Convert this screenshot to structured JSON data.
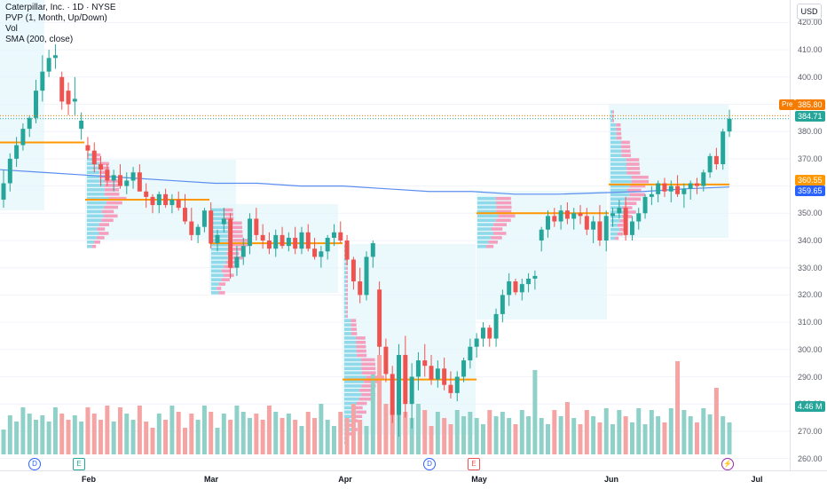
{
  "legend": {
    "symbol": "Caterpillar, Inc. · 1D · NYSE",
    "pvp": "PVP (1, Month, Up/Down)",
    "vol": "Vol",
    "sma": "SMA (200, close)"
  },
  "currency": "USD",
  "price_axis": {
    "ticks": [
      "420.00",
      "410.00",
      "400.00",
      "390.00",
      "380.00",
      "370.00",
      "360.00",
      "350.00",
      "340.00",
      "330.00",
      "320.00",
      "310.00",
      "300.00",
      "290.00",
      "280.00",
      "270.00",
      "260.00"
    ],
    "pre_label": "Pre",
    "pre_price": "385.80",
    "last_price": "384.71",
    "poc_price": "360.55",
    "sma_price": "359.65",
    "volume_label": "4.46 M"
  },
  "time_axis": {
    "labels": [
      "Feb",
      "Mar",
      "Apr",
      "May",
      "Jun",
      "Jul"
    ]
  },
  "events": {
    "div1": "D",
    "earn1": "E",
    "div2": "D",
    "earn2": "E",
    "flash": "⚡"
  },
  "colors": {
    "up": "#26a69a",
    "down": "#ef5350",
    "sma": "#5b8def",
    "poc": "#ff9800",
    "vol_up": "#8fd1c9",
    "vol_down": "#f5a3a3",
    "profile_bg": "#e3f6fb"
  },
  "chart_data": {
    "type": "candlestick",
    "y_range": [
      255,
      425
    ],
    "candles": [
      [
        355,
        366,
        352,
        361
      ],
      [
        361,
        372,
        358,
        370
      ],
      [
        370,
        378,
        367,
        375
      ],
      [
        375,
        383,
        373,
        381
      ],
      [
        381,
        386,
        378,
        385
      ],
      [
        385,
        399,
        383,
        395
      ],
      [
        395,
        408,
        391,
        402
      ],
      [
        402,
        410,
        400,
        407
      ],
      [
        407,
        412,
        403,
        408
      ],
      [
        400,
        402,
        388,
        391
      ],
      [
        395,
        398,
        386,
        390
      ],
      [
        391,
        400,
        386,
        392
      ],
      [
        381,
        387,
        377,
        384
      ],
      [
        375,
        378,
        370,
        373
      ],
      [
        373,
        376,
        365,
        368
      ],
      [
        368,
        371,
        360,
        366
      ],
      [
        366,
        368,
        360,
        362
      ],
      [
        362,
        366,
        358,
        364
      ],
      [
        364,
        368,
        359,
        360
      ],
      [
        360,
        365,
        357,
        362
      ],
      [
        362,
        367,
        359,
        365
      ],
      [
        365,
        368,
        358,
        358
      ],
      [
        358,
        361,
        352,
        356
      ],
      [
        356,
        357,
        350,
        353
      ],
      [
        353,
        358,
        350,
        357
      ],
      [
        357,
        359,
        352,
        353
      ],
      [
        353,
        357,
        350,
        355
      ],
      [
        355,
        358,
        351,
        352
      ],
      [
        352,
        357,
        346,
        347
      ],
      [
        347,
        352,
        340,
        342
      ],
      [
        342,
        346,
        339,
        345
      ],
      [
        345,
        352,
        343,
        351
      ],
      [
        351,
        354,
        337,
        339
      ],
      [
        339,
        344,
        336,
        342
      ],
      [
        346,
        352,
        343,
        348
      ],
      [
        348,
        350,
        326,
        330
      ],
      [
        330,
        338,
        327,
        334
      ],
      [
        334,
        341,
        331,
        338
      ],
      [
        338,
        350,
        335,
        348
      ],
      [
        348,
        352,
        340,
        342
      ],
      [
        342,
        346,
        337,
        340
      ],
      [
        340,
        343,
        335,
        337
      ],
      [
        337,
        344,
        334,
        342
      ],
      [
        342,
        345,
        337,
        338
      ],
      [
        338,
        343,
        336,
        341
      ],
      [
        341,
        345,
        335,
        337
      ],
      [
        337,
        345,
        335,
        343
      ],
      [
        343,
        346,
        336,
        337
      ],
      [
        337,
        341,
        333,
        334
      ],
      [
        334,
        338,
        330,
        336
      ],
      [
        336,
        342,
        333,
        341
      ],
      [
        341,
        346,
        338,
        343
      ],
      [
        343,
        347,
        339,
        340
      ],
      [
        340,
        342,
        331,
        333
      ],
      [
        333,
        334,
        322,
        325
      ],
      [
        325,
        330,
        317,
        320
      ],
      [
        320,
        336,
        318,
        334
      ],
      [
        334,
        340,
        330,
        339
      ],
      [
        322,
        325,
        298,
        301
      ],
      [
        301,
        304,
        288,
        291
      ],
      [
        291,
        294,
        273,
        276
      ],
      [
        276,
        302,
        268,
        298
      ],
      [
        298,
        305,
        275,
        280
      ],
      [
        280,
        295,
        271,
        290
      ],
      [
        290,
        299,
        285,
        296
      ],
      [
        296,
        302,
        290,
        294
      ],
      [
        294,
        298,
        287,
        289
      ],
      [
        289,
        296,
        286,
        293
      ],
      [
        293,
        297,
        285,
        287
      ],
      [
        287,
        292,
        282,
        284
      ],
      [
        284,
        292,
        281,
        290
      ],
      [
        290,
        297,
        288,
        296
      ],
      [
        296,
        304,
        293,
        301
      ],
      [
        301,
        306,
        297,
        304
      ],
      [
        304,
        310,
        301,
        308
      ],
      [
        308,
        309,
        301,
        304
      ],
      [
        304,
        315,
        301,
        313
      ],
      [
        313,
        322,
        310,
        320
      ],
      [
        320,
        328,
        316,
        325
      ],
      [
        325,
        326,
        320,
        321
      ],
      [
        321,
        326,
        318,
        324
      ],
      [
        324,
        328,
        321,
        326
      ],
      [
        326,
        329,
        322,
        327
      ],
      [
        340,
        345,
        336,
        344
      ],
      [
        344,
        351,
        341,
        349
      ],
      [
        349,
        352,
        345,
        347
      ],
      [
        347,
        353,
        344,
        351
      ],
      [
        351,
        354,
        346,
        348
      ],
      [
        348,
        352,
        344,
        350
      ],
      [
        350,
        353,
        346,
        349
      ],
      [
        349,
        352,
        342,
        344
      ],
      [
        344,
        349,
        339,
        347
      ],
      [
        347,
        353,
        338,
        340
      ],
      [
        340,
        351,
        336,
        349
      ],
      [
        349,
        352,
        345,
        350
      ],
      [
        350,
        355,
        348,
        352
      ],
      [
        352,
        356,
        340,
        342
      ],
      [
        342,
        349,
        340,
        347
      ],
      [
        347,
        352,
        344,
        350
      ],
      [
        350,
        357,
        348,
        356
      ],
      [
        356,
        360,
        353,
        357
      ],
      [
        357,
        362,
        354,
        361
      ],
      [
        361,
        363,
        356,
        358
      ],
      [
        358,
        362,
        354,
        360
      ],
      [
        360,
        364,
        356,
        357
      ],
      [
        357,
        361,
        352,
        359
      ],
      [
        359,
        362,
        355,
        361
      ],
      [
        361,
        363,
        357,
        360
      ],
      [
        360,
        366,
        358,
        365
      ],
      [
        365,
        372,
        363,
        371
      ],
      [
        371,
        374,
        366,
        368
      ],
      [
        368,
        381,
        366,
        380
      ],
      [
        380,
        388,
        378,
        384.71
      ]
    ],
    "sma200": [
      366,
      365,
      364,
      363,
      362,
      361,
      361,
      360,
      360,
      359,
      358,
      358,
      357,
      357,
      357.5,
      358,
      359,
      359.65
    ],
    "poc_levels": [
      {
        "month": "Jan",
        "price": 376
      },
      {
        "month": "Feb",
        "price": 355
      },
      {
        "month": "Mar",
        "price": 339
      },
      {
        "month": "Apr",
        "price": 289
      },
      {
        "month": "May",
        "price": 350
      },
      {
        "month": "Jun",
        "price": 360.55
      }
    ],
    "last_volume": "4.46 M"
  }
}
